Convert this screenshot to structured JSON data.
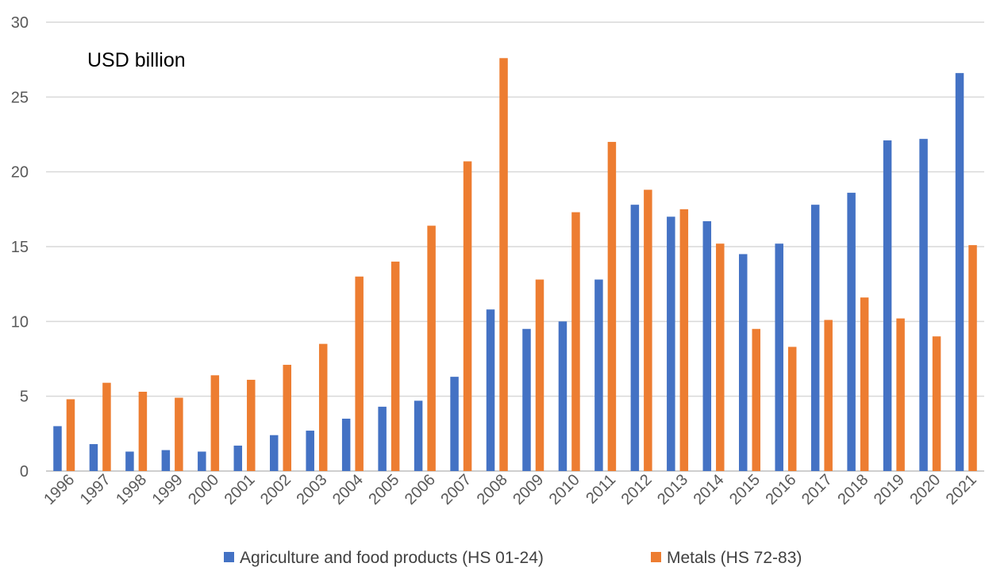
{
  "chart_data": {
    "type": "bar",
    "title": "",
    "unit_label": "USD billion",
    "xlabel": "",
    "ylabel": "",
    "ylim": [
      0,
      30
    ],
    "yticks": [
      0,
      5,
      10,
      15,
      20,
      25,
      30
    ],
    "grid": true,
    "legend_position": "bottom",
    "categories": [
      "1996",
      "1997",
      "1998",
      "1999",
      "2000",
      "2001",
      "2002",
      "2003",
      "2004",
      "2005",
      "2006",
      "2007",
      "2008",
      "2009",
      "2010",
      "2011",
      "2012",
      "2013",
      "2014",
      "2015",
      "2016",
      "2017",
      "2018",
      "2019",
      "2020",
      "2021"
    ],
    "series": [
      {
        "name": "Agriculture and food products (HS 01-24)",
        "color": "#4472c4",
        "values": [
          3.0,
          1.8,
          1.3,
          1.4,
          1.3,
          1.7,
          2.4,
          2.7,
          3.5,
          4.3,
          4.7,
          6.3,
          10.8,
          9.5,
          10.0,
          12.8,
          17.8,
          17.0,
          16.7,
          14.5,
          15.2,
          17.8,
          18.6,
          22.1,
          22.2,
          26.6
        ]
      },
      {
        "name": "Metals (HS 72-83)",
        "color": "#ed7d31",
        "values": [
          4.8,
          5.9,
          5.3,
          4.9,
          6.4,
          6.1,
          7.1,
          8.5,
          13.0,
          14.0,
          16.4,
          20.7,
          27.6,
          12.8,
          17.3,
          22.0,
          18.8,
          17.5,
          15.2,
          9.5,
          8.3,
          10.1,
          11.6,
          10.2,
          9.0,
          15.1
        ]
      }
    ]
  }
}
